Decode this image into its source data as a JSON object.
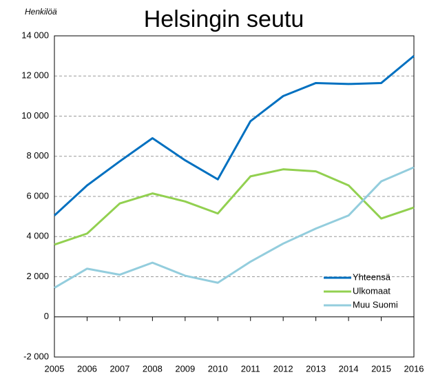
{
  "chart_data": {
    "type": "line",
    "title": "Helsingin seutu",
    "y_label": "Henkilöä",
    "x": [
      2005,
      2006,
      2007,
      2008,
      2009,
      2010,
      2011,
      2012,
      2013,
      2014,
      2015,
      2016
    ],
    "xlim": [
      2005,
      2016
    ],
    "xticks": [
      2005,
      2006,
      2007,
      2008,
      2009,
      2010,
      2011,
      2012,
      2013,
      2014,
      2015,
      2016
    ],
    "ylim": [
      -2000,
      14000
    ],
    "yticks": [
      {
        "value": -2000,
        "label": "-2 000"
      },
      0,
      {
        "value": 2000,
        "label": "2 000"
      },
      {
        "value": 4000,
        "label": "4 000"
      },
      {
        "value": 6000,
        "label": "6 000"
      },
      {
        "value": 8000,
        "label": "8 000"
      },
      {
        "value": 10000,
        "label": "10 000"
      },
      {
        "value": 12000,
        "label": "12 000"
      },
      {
        "value": 14000,
        "label": "14 000"
      }
    ],
    "grid": true,
    "legend": "lower right",
    "series": [
      {
        "name": "Yhteensä",
        "color": "#0070c0",
        "values": [
          5050,
          6550,
          7750,
          8900,
          7800,
          6850,
          9750,
          11000,
          11650,
          11600,
          11650,
          13000
        ]
      },
      {
        "name": "Ulkomaat",
        "color": "#92d050",
        "values": [
          3600,
          4150,
          5650,
          6150,
          5750,
          5150,
          7000,
          7350,
          7250,
          6550,
          4900,
          5450
        ]
      },
      {
        "name": "Muu Suomi",
        "color": "#93cddd",
        "values": [
          1450,
          2400,
          2100,
          2700,
          2050,
          1700,
          2750,
          3650,
          4400,
          5050,
          6750,
          7450
        ]
      }
    ]
  }
}
